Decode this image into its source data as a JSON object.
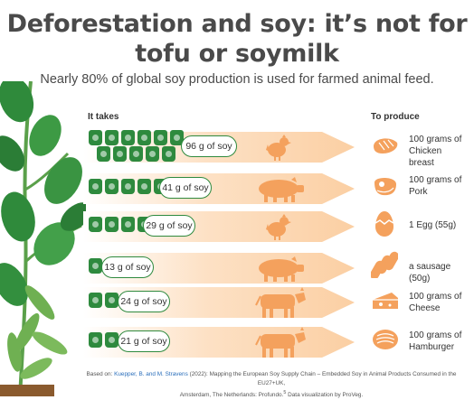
{
  "title_line1": "Deforestation and soy: it’s not for",
  "title_line2": "tofu or soymilk",
  "subtitle": "Nearly 80% of global soy production is used for farmed animal feed.",
  "header_left": "It takes",
  "header_right": "To produce",
  "rows": [
    {
      "soy": "96 g of soy",
      "product": "100 grams of Chicken breast",
      "animal": "chicken-icon",
      "product_icon": "chicken-breast-icon"
    },
    {
      "soy": "41 g of soy",
      "product": "100 grams of Pork",
      "animal": "pig-icon",
      "product_icon": "pork-icon"
    },
    {
      "soy": "29 g of soy",
      "product": "1 Egg (55g)",
      "animal": "chicken-icon",
      "product_icon": "egg-icon"
    },
    {
      "soy": "13 g of soy",
      "product": "a sausage (50g)",
      "animal": "pig-icon",
      "product_icon": "sausage-icon"
    },
    {
      "soy": "24 g of soy",
      "product": "100 grams of Cheese",
      "animal": "cow-icon",
      "product_icon": "cheese-icon"
    },
    {
      "soy": "21 g of soy",
      "product": "100 grams of Hamburger",
      "animal": "cow-icon",
      "product_icon": "hamburger-icon"
    }
  ],
  "footer": {
    "prefix": "Based on: ",
    "authors": "Kuepper, B. and M. Stravens",
    "text1": " (2022): Mapping the European Soy Supply Chain – Embedded Soy in Animal Products Consumed in the EU27+UK,",
    "text2": "Amsterdam, The Netherlands: Profundo.",
    "sup": "5",
    "text3": " Data visualization by ProVeg."
  },
  "colors": {
    "green": "#2e8a3e",
    "orange": "#f4a15d",
    "band": "#fbd9b7",
    "text": "#4a4a4a"
  }
}
